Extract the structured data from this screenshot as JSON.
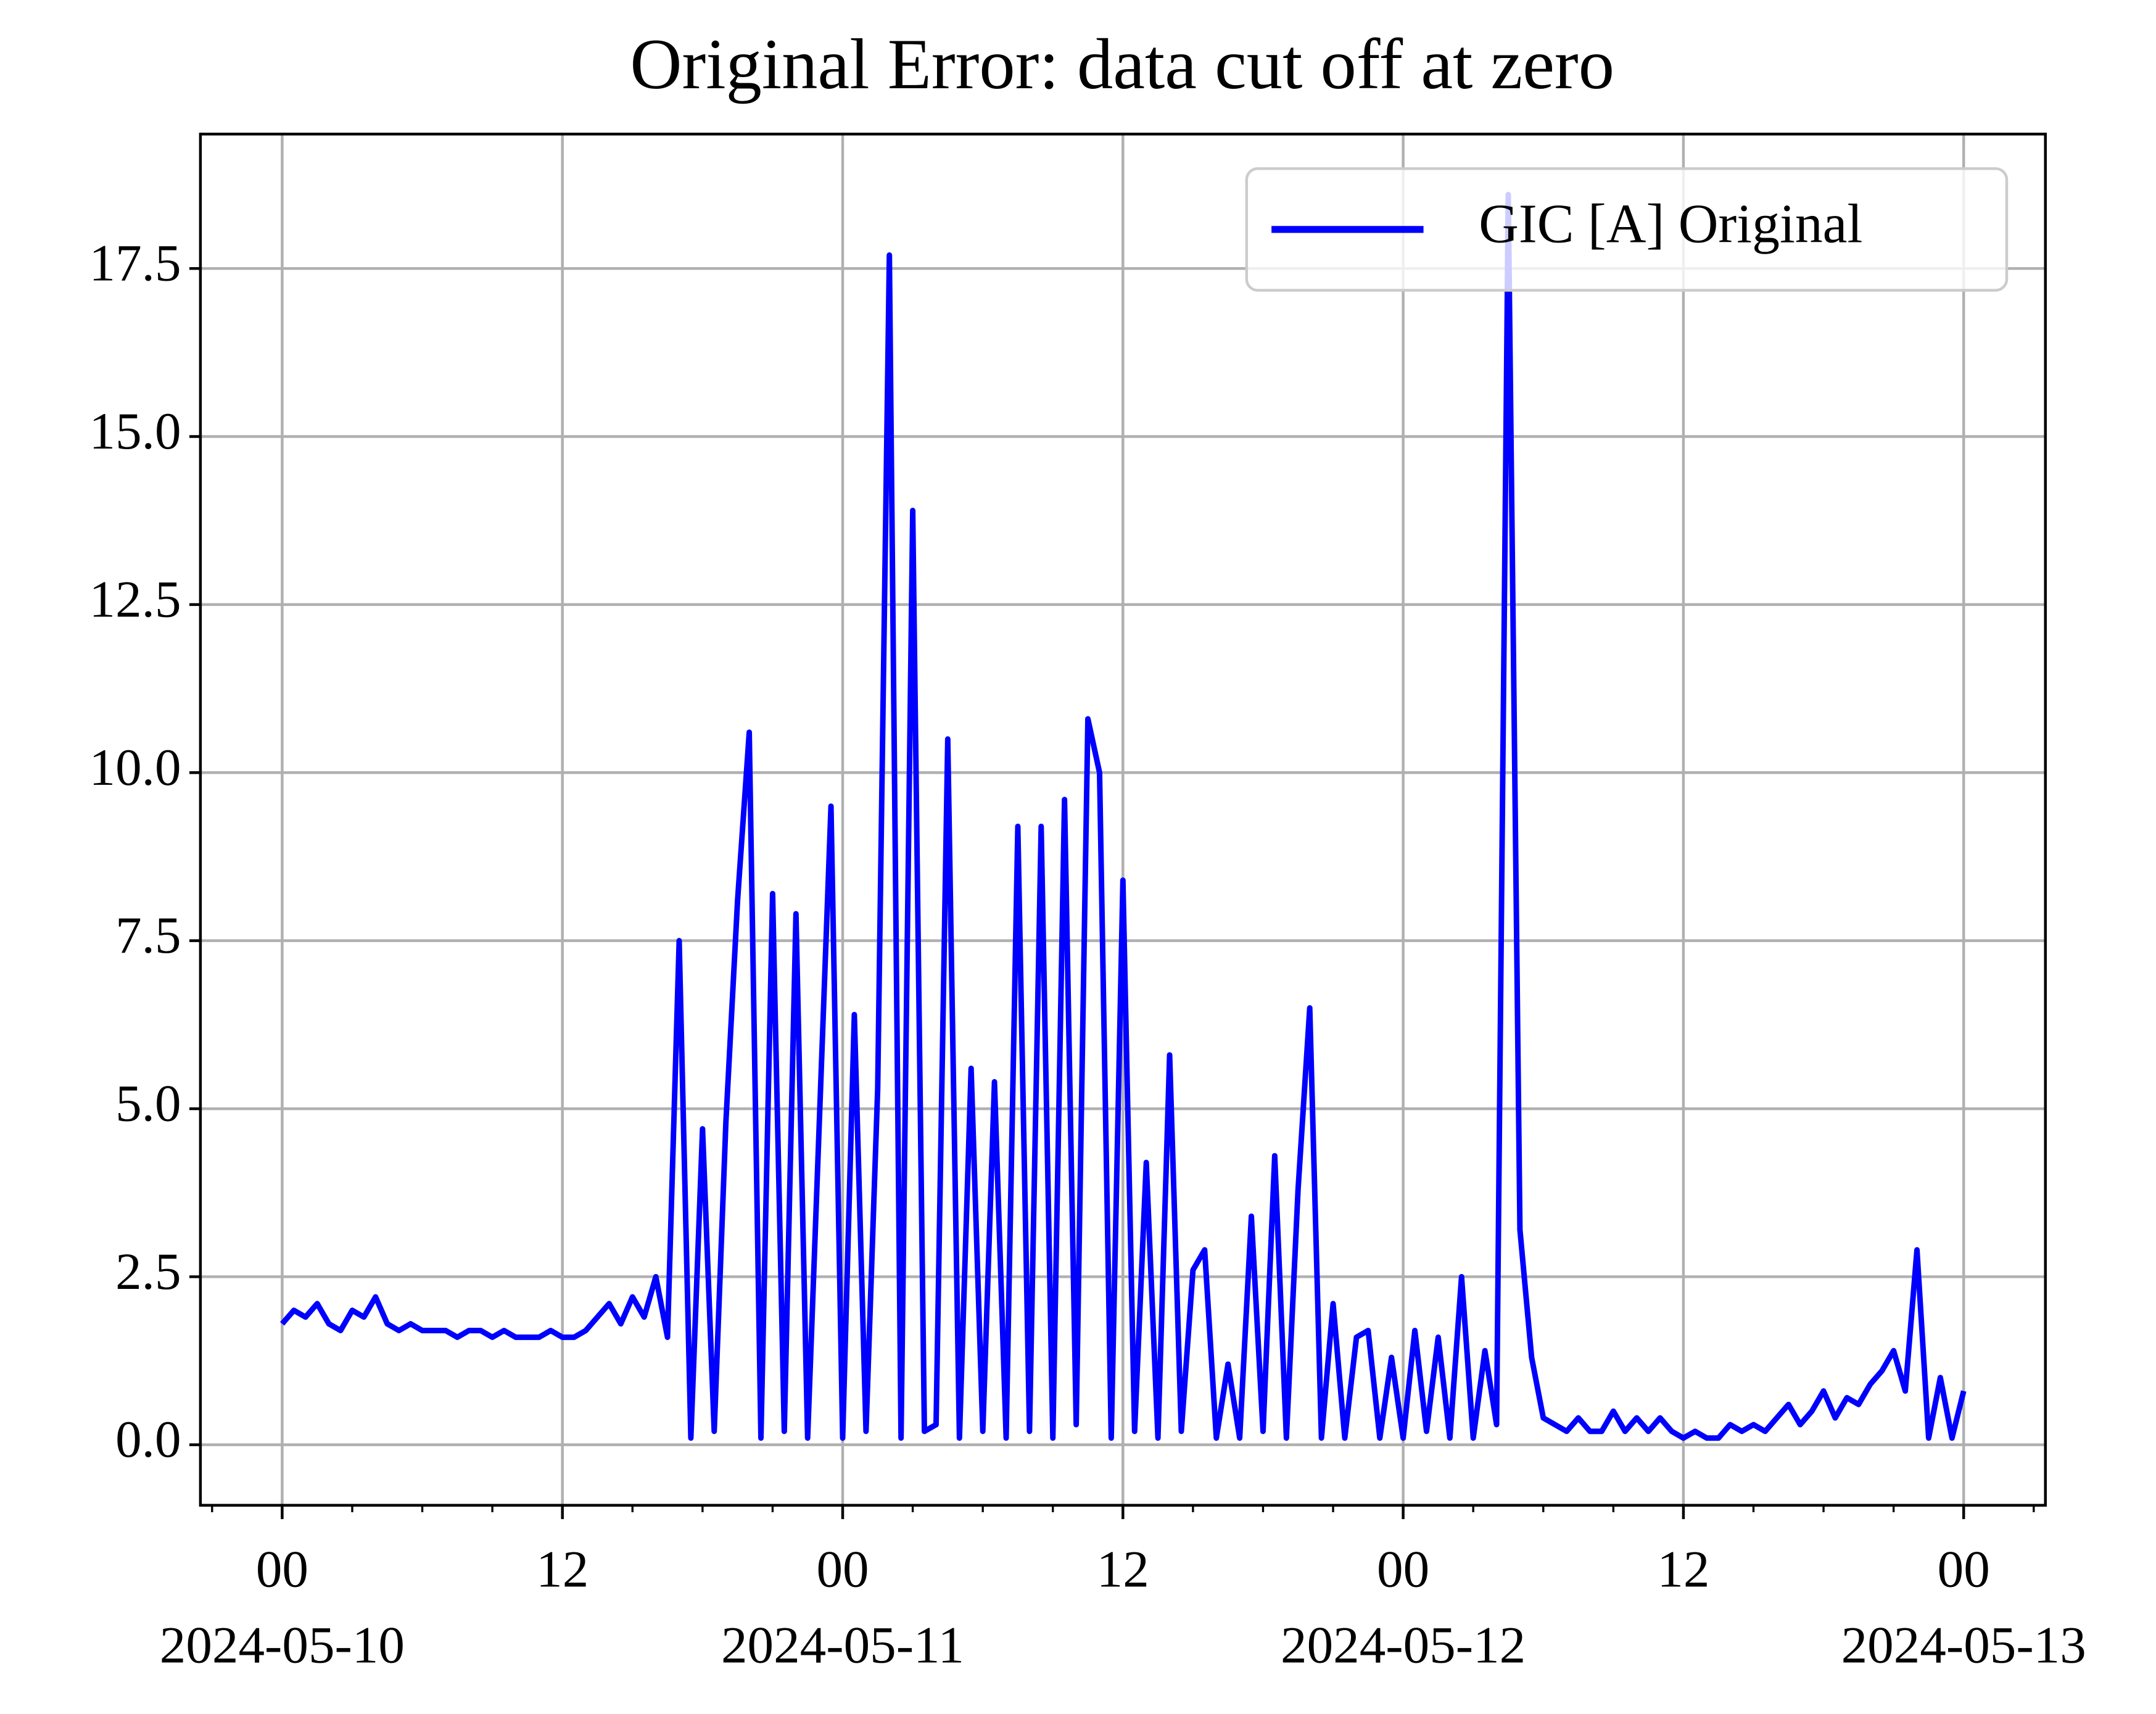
{
  "chart_data": {
    "type": "line",
    "title": "Original Error: data cut off at zero",
    "x": [
      "2024-05-10 00:00",
      "2024-05-10 00:30",
      "2024-05-10 01:00",
      "2024-05-10 01:30",
      "2024-05-10 02:00",
      "2024-05-10 02:30",
      "2024-05-10 03:00",
      "2024-05-10 03:30",
      "2024-05-10 04:00",
      "2024-05-10 04:30",
      "2024-05-10 05:00",
      "2024-05-10 05:30",
      "2024-05-10 06:00",
      "2024-05-10 06:30",
      "2024-05-10 07:00",
      "2024-05-10 07:30",
      "2024-05-10 08:00",
      "2024-05-10 08:30",
      "2024-05-10 09:00",
      "2024-05-10 09:30",
      "2024-05-10 10:00",
      "2024-05-10 10:30",
      "2024-05-10 11:00",
      "2024-05-10 11:30",
      "2024-05-10 12:00",
      "2024-05-10 12:30",
      "2024-05-10 13:00",
      "2024-05-10 13:30",
      "2024-05-10 14:00",
      "2024-05-10 14:30",
      "2024-05-10 15:00",
      "2024-05-10 15:30",
      "2024-05-10 16:00",
      "2024-05-10 16:30",
      "2024-05-10 17:00",
      "2024-05-10 17:30",
      "2024-05-10 18:00",
      "2024-05-10 18:30",
      "2024-05-10 19:00",
      "2024-05-10 19:30",
      "2024-05-10 20:00",
      "2024-05-10 20:30",
      "2024-05-10 21:00",
      "2024-05-10 21:30",
      "2024-05-10 22:00",
      "2024-05-10 22:30",
      "2024-05-10 23:00",
      "2024-05-10 23:30",
      "2024-05-11 00:00",
      "2024-05-11 00:30",
      "2024-05-11 01:00",
      "2024-05-11 01:30",
      "2024-05-11 02:00",
      "2024-05-11 02:30",
      "2024-05-11 03:00",
      "2024-05-11 03:30",
      "2024-05-11 04:00",
      "2024-05-11 04:30",
      "2024-05-11 05:00",
      "2024-05-11 05:30",
      "2024-05-11 06:00",
      "2024-05-11 06:30",
      "2024-05-11 07:00",
      "2024-05-11 07:30",
      "2024-05-11 08:00",
      "2024-05-11 08:30",
      "2024-05-11 09:00",
      "2024-05-11 09:30",
      "2024-05-11 10:00",
      "2024-05-11 10:30",
      "2024-05-11 11:00",
      "2024-05-11 11:30",
      "2024-05-11 12:00",
      "2024-05-11 12:30",
      "2024-05-11 13:00",
      "2024-05-11 13:30",
      "2024-05-11 14:00",
      "2024-05-11 14:30",
      "2024-05-11 15:00",
      "2024-05-11 15:30",
      "2024-05-11 16:00",
      "2024-05-11 16:30",
      "2024-05-11 17:00",
      "2024-05-11 17:30",
      "2024-05-11 18:00",
      "2024-05-11 18:30",
      "2024-05-11 19:00",
      "2024-05-11 19:30",
      "2024-05-11 20:00",
      "2024-05-11 20:30",
      "2024-05-11 21:00",
      "2024-05-11 21:30",
      "2024-05-11 22:00",
      "2024-05-11 22:30",
      "2024-05-11 23:00",
      "2024-05-11 23:30",
      "2024-05-12 00:00",
      "2024-05-12 00:30",
      "2024-05-12 01:00",
      "2024-05-12 01:30",
      "2024-05-12 02:00",
      "2024-05-12 02:30",
      "2024-05-12 03:00",
      "2024-05-12 03:30",
      "2024-05-12 04:00",
      "2024-05-12 04:30",
      "2024-05-12 05:00",
      "2024-05-12 05:30",
      "2024-05-12 06:00",
      "2024-05-12 06:30",
      "2024-05-12 07:00",
      "2024-05-12 07:30",
      "2024-05-12 08:00",
      "2024-05-12 08:30",
      "2024-05-12 09:00",
      "2024-05-12 09:30",
      "2024-05-12 10:00",
      "2024-05-12 10:30",
      "2024-05-12 11:00",
      "2024-05-12 11:30",
      "2024-05-12 12:00",
      "2024-05-12 12:30",
      "2024-05-12 13:00",
      "2024-05-12 13:30",
      "2024-05-12 14:00",
      "2024-05-12 14:30",
      "2024-05-12 15:00",
      "2024-05-12 15:30",
      "2024-05-12 16:00",
      "2024-05-12 16:30",
      "2024-05-12 17:00",
      "2024-05-12 17:30",
      "2024-05-12 18:00",
      "2024-05-12 18:30",
      "2024-05-12 19:00",
      "2024-05-12 19:30",
      "2024-05-12 20:00",
      "2024-05-12 20:30",
      "2024-05-12 21:00",
      "2024-05-12 21:30",
      "2024-05-12 22:00",
      "2024-05-12 22:30",
      "2024-05-12 23:00",
      "2024-05-12 23:30",
      "2024-05-13 00:00"
    ],
    "series": [
      {
        "name": "GIC [A] Original",
        "color": "#0000ff",
        "values": [
          1.8,
          2.0,
          1.9,
          2.1,
          1.8,
          1.7,
          2.0,
          1.9,
          2.2,
          1.8,
          1.7,
          1.8,
          1.7,
          1.7,
          1.7,
          1.6,
          1.7,
          1.7,
          1.6,
          1.7,
          1.6,
          1.6,
          1.6,
          1.7,
          1.6,
          1.6,
          1.7,
          1.9,
          2.1,
          1.8,
          2.2,
          1.9,
          2.5,
          1.6,
          7.5,
          0.1,
          4.7,
          0.2,
          4.8,
          8.1,
          10.6,
          0.1,
          8.2,
          0.2,
          7.9,
          0.1,
          4.8,
          9.5,
          0.1,
          6.4,
          0.2,
          5.3,
          17.7,
          0.1,
          13.9,
          0.2,
          0.3,
          10.5,
          0.1,
          5.6,
          0.2,
          5.4,
          0.1,
          9.2,
          0.2,
          9.2,
          0.1,
          9.6,
          0.3,
          10.8,
          10.0,
          0.1,
          8.4,
          0.2,
          4.2,
          0.1,
          5.8,
          0.2,
          2.6,
          2.9,
          0.1,
          1.2,
          0.1,
          3.4,
          0.2,
          4.3,
          0.1,
          3.8,
          6.5,
          0.1,
          2.1,
          0.1,
          1.6,
          1.7,
          0.1,
          1.3,
          0.1,
          1.7,
          0.2,
          1.6,
          0.1,
          2.5,
          0.1,
          1.4,
          0.3,
          18.6,
          3.2,
          1.3,
          0.4,
          0.3,
          0.2,
          0.4,
          0.2,
          0.2,
          0.5,
          0.2,
          0.4,
          0.2,
          0.4,
          0.2,
          0.1,
          0.2,
          0.1,
          0.1,
          0.3,
          0.2,
          0.3,
          0.2,
          0.4,
          0.6,
          0.3,
          0.5,
          0.8,
          0.4,
          0.7,
          0.6,
          0.9,
          1.1,
          1.4,
          0.8,
          2.9,
          0.1,
          1.0,
          0.1,
          0.8
        ]
      }
    ],
    "xlim": [
      "2024-05-09 20:30",
      "2024-05-13 03:30"
    ],
    "xticks": [
      {
        "value": "2024-05-10 00:00",
        "label": "00",
        "sublabel": "2024-05-10"
      },
      {
        "value": "2024-05-10 12:00",
        "label": "12"
      },
      {
        "value": "2024-05-11 00:00",
        "label": "00",
        "sublabel": "2024-05-11"
      },
      {
        "value": "2024-05-11 12:00",
        "label": "12"
      },
      {
        "value": "2024-05-12 00:00",
        "label": "00",
        "sublabel": "2024-05-12"
      },
      {
        "value": "2024-05-12 12:00",
        "label": "12"
      },
      {
        "value": "2024-05-13 00:00",
        "label": "00",
        "sublabel": "2024-05-13"
      }
    ],
    "xminorticks": [
      "2024-05-09 21:00",
      "2024-05-10 03:00",
      "2024-05-10 06:00",
      "2024-05-10 09:00",
      "2024-05-10 15:00",
      "2024-05-10 18:00",
      "2024-05-10 21:00",
      "2024-05-11 03:00",
      "2024-05-11 06:00",
      "2024-05-11 09:00",
      "2024-05-11 15:00",
      "2024-05-11 18:00",
      "2024-05-11 21:00",
      "2024-05-12 03:00",
      "2024-05-12 06:00",
      "2024-05-12 09:00",
      "2024-05-12 15:00",
      "2024-05-12 18:00",
      "2024-05-12 21:00",
      "2024-05-13 03:00"
    ],
    "ylim": [
      -0.9,
      19.5
    ],
    "yticks": [
      {
        "value": 0,
        "label": "0.0"
      },
      2.5,
      {
        "value": 5,
        "label": "5.0"
      },
      7.5,
      {
        "value": 10,
        "label": "10.0"
      },
      12.5,
      {
        "value": 15,
        "label": "15.0"
      },
      17.5
    ],
    "grid": true,
    "legend": "upper right"
  }
}
